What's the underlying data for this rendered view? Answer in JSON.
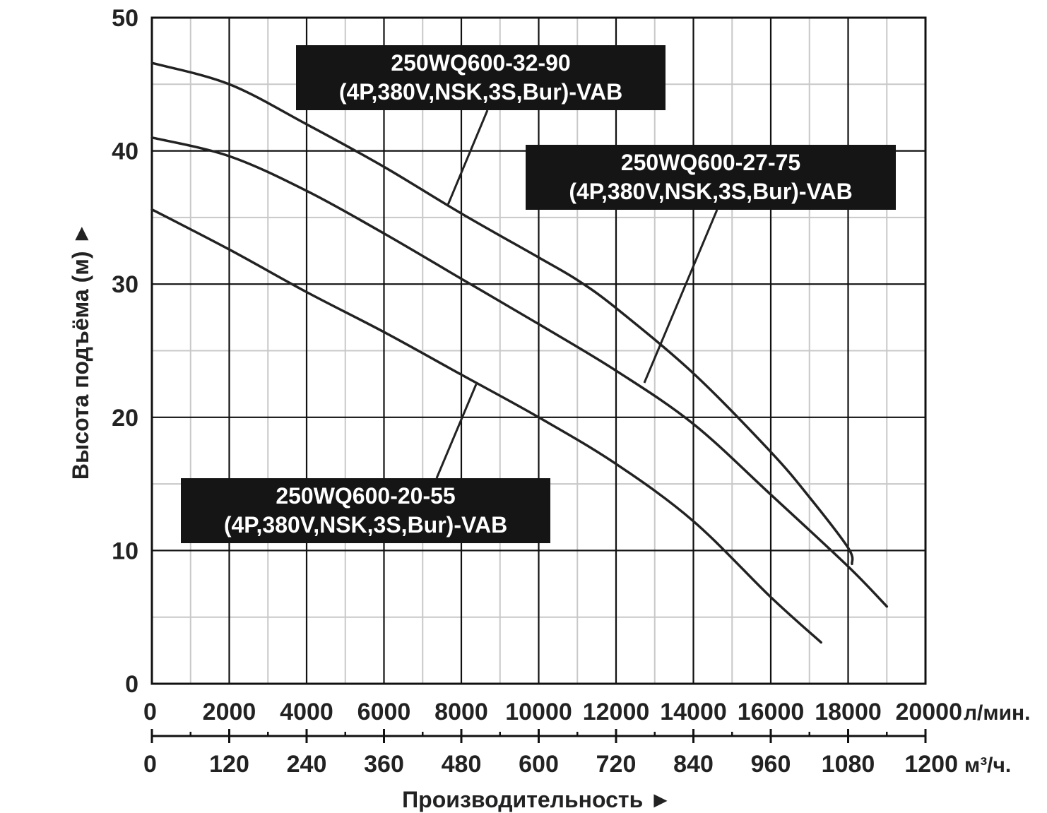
{
  "chart_data": {
    "type": "line",
    "x_unit": "л/мин.",
    "x2_unit": "м³/ч.",
    "xlabel": "Производительность ►",
    "ylabel": "Высота подъёма (м) ►",
    "xlim": [
      0,
      20000
    ],
    "ylim": [
      0,
      50
    ],
    "x_ticks": [
      "0",
      "2000",
      "4000",
      "6000",
      "8000",
      "10000",
      "12000",
      "14000",
      "16000",
      "18000",
      "20000"
    ],
    "x2_ticks": [
      "0",
      "120",
      "240",
      "360",
      "480",
      "600",
      "720",
      "840",
      "960",
      "1080",
      "1200"
    ],
    "y_ticks": [
      "0",
      "10",
      "20",
      "30",
      "40",
      "50"
    ],
    "grid": true,
    "series": [
      {
        "name": "250WQ600-32-90\n(4P,380V,NSK,3S,Bur)-VAB",
        "x": [
          0,
          2000,
          4000,
          6000,
          8000,
          10000,
          11000,
          12000,
          14000,
          16000,
          17000,
          18000,
          18100
        ],
        "y": [
          46.6,
          45.0,
          42.0,
          38.8,
          35.3,
          32.0,
          30.3,
          28.2,
          23.3,
          17.4,
          14.0,
          10.2,
          9.0
        ]
      },
      {
        "name": "250WQ600-27-75\n(4P,380V,NSK,3S,Bur)-VAB",
        "x": [
          0,
          2000,
          4000,
          6000,
          8000,
          10000,
          12000,
          14000,
          16000,
          18000,
          19000
        ],
        "y": [
          41.0,
          39.6,
          37.0,
          33.8,
          30.4,
          27.0,
          23.5,
          19.5,
          14.2,
          8.8,
          5.8
        ]
      },
      {
        "name": "250WQ600-20-55\n(4P,380V,NSK,3S,Bur)-VAB",
        "x": [
          0,
          2000,
          4000,
          6000,
          8000,
          10000,
          12000,
          14000,
          16000,
          17300
        ],
        "y": [
          35.6,
          32.6,
          29.4,
          26.4,
          23.2,
          20.0,
          16.5,
          12.2,
          6.5,
          3.1
        ]
      }
    ]
  }
}
